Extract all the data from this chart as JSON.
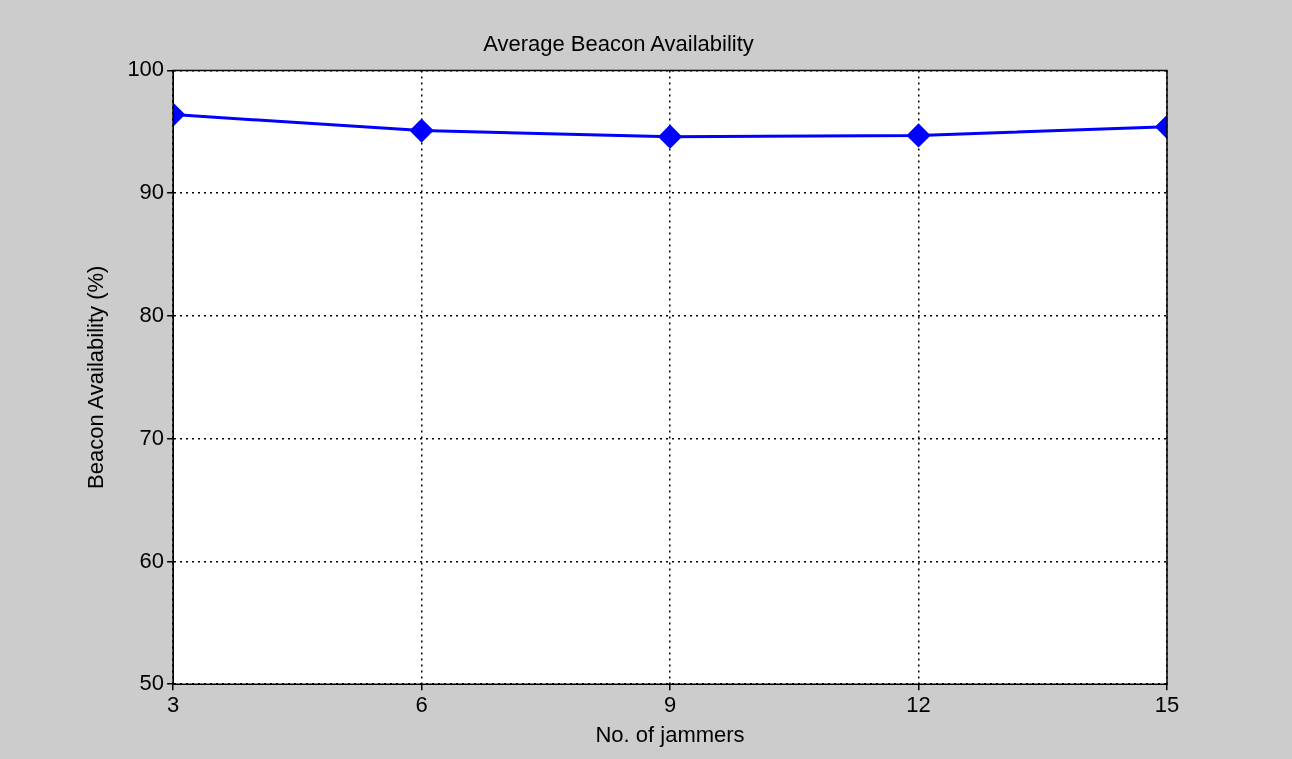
{
  "chart_data": {
    "type": "line",
    "title": "Average Beacon Availability",
    "xlabel": "No. of jammers",
    "ylabel": "Beacon Availability (%)",
    "x": [
      3,
      6,
      9,
      12,
      15
    ],
    "series": [
      {
        "color": "#0000ff",
        "values": [
          96.4,
          95.1,
          94.6,
          94.7,
          95.4
        ]
      }
    ],
    "xlim": [
      3,
      15
    ],
    "xticks": [
      3,
      6,
      9,
      12,
      15
    ],
    "ylim": [
      50,
      100
    ],
    "yticks": [
      50,
      60,
      70,
      80,
      90,
      100
    ],
    "grid": true,
    "marker": "diamond",
    "line_style": "solid"
  }
}
